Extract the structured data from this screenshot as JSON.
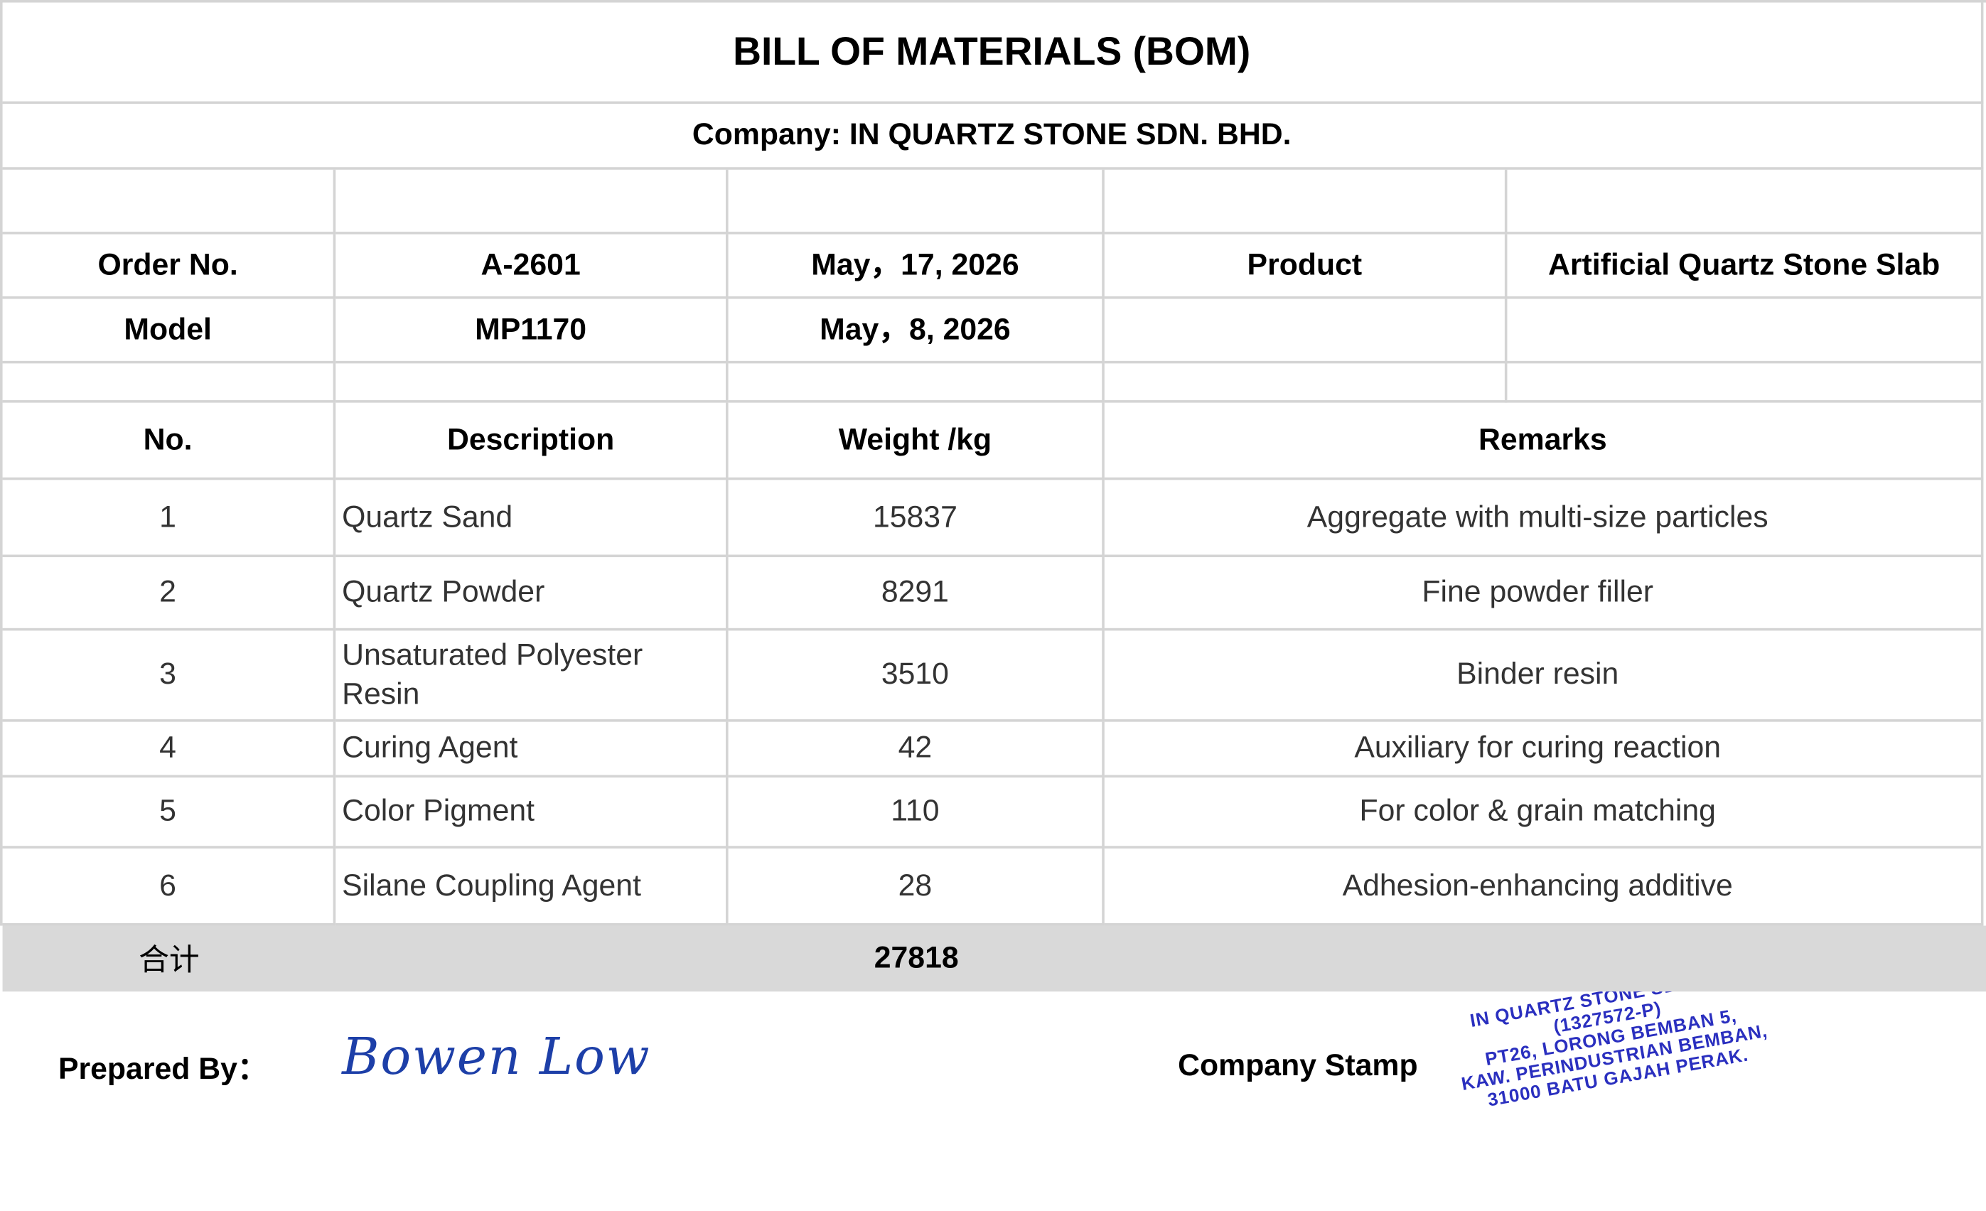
{
  "header": {
    "title": "BILL OF MATERIALS (BOM)",
    "company": "Company: IN QUARTZ STONE SDN. BHD."
  },
  "info": {
    "rows": [
      [
        "Order No.",
        "A-2601",
        "May，17, 2026",
        "Product",
        "Artificial Quartz Stone Slab"
      ],
      [
        "Model",
        "MP1170",
        "May，8, 2026"
      ]
    ]
  },
  "table": {
    "columns": [
      "No.",
      "Description",
      "Weight /kg",
      "Remarks"
    ],
    "rows": [
      [
        "1",
        "Quartz Sand",
        "15837",
        "Aggregate with multi-size particles"
      ],
      [
        "2",
        "Quartz Powder",
        "8291",
        "Fine powder filler"
      ],
      [
        "3",
        "Unsaturated Polyester Resin",
        "3510",
        "Binder resin"
      ],
      [
        "4",
        "Curing Agent",
        "42",
        "Auxiliary for curing reaction"
      ],
      [
        "5",
        "Color Pigment",
        "110",
        "For color & grain matching"
      ],
      [
        "6",
        "Silane Coupling Agent",
        "28",
        "Adhesion-enhancing additive"
      ]
    ],
    "total": {
      "label": "合计",
      "value": "27818"
    }
  },
  "footer": {
    "prepared_by_label": "Prepared By：",
    "signature": "Bowen Low",
    "stamp_label": "Company Stamp",
    "stamp": [
      "IN QUARTZ STONE SDN BHD",
      "(1327572-P)",
      "PT26, LORONG BEMBAN 5,",
      "KAW. PERINDUSTRIAN BEMBAN,",
      "31000 BATU GAJAH PERAK."
    ]
  }
}
